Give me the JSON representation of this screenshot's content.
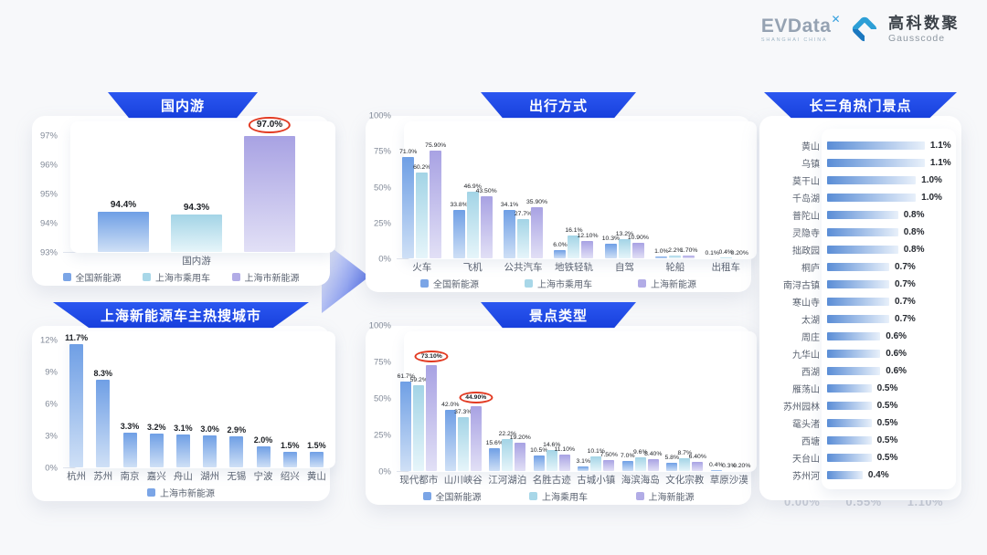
{
  "logo": {
    "evdata": "EVData",
    "evdata_mark": "✕",
    "evdata_sub": "SHANGHAI CHINA",
    "brand_cn": "高科数聚",
    "brand_en": "Gausscode"
  },
  "colors": {
    "ribbon_blue": "#1d49e6",
    "series_national_blue": "#7ba5e6",
    "series_passenger_cyan": "#a8d7e8",
    "series_shanghai_nev_purple": "#b2ace6",
    "highlight_circle_red": "#e23a22",
    "hbar_blue": "#5a8dd6"
  },
  "footer_axis_ticks": [
    "0.00%",
    "0.55%",
    "1.10%"
  ],
  "chart_data": [
    {
      "type": "bar",
      "title": "国内游",
      "y_ticks": [
        "97%",
        "96%",
        "95%",
        "94%",
        "93%"
      ],
      "y_min": 93,
      "y_max": 97.7,
      "grid": false,
      "categories": [
        "国内游"
      ],
      "legend": [
        "全国新能源",
        "上海市乘用车",
        "上海市新能源"
      ],
      "series": [
        {
          "name": "全国新能源",
          "values": [
            94.4
          ],
          "labels": [
            "94.4%"
          ]
        },
        {
          "name": "上海市乘用车",
          "values": [
            94.3
          ],
          "labels": [
            "94.3%"
          ]
        },
        {
          "name": "上海市新能源",
          "values": [
            97.0
          ],
          "labels": [
            "97.0%"
          ],
          "circled": [
            0
          ]
        }
      ]
    },
    {
      "type": "bar",
      "title": "上海新能源车主热搜城市",
      "y_ticks": [
        "12%",
        "9%",
        "6%",
        "3%",
        "0%"
      ],
      "y_min": 0,
      "y_max": 13.4,
      "grid": false,
      "categories": [
        "杭州",
        "苏州",
        "南京",
        "嘉兴",
        "舟山",
        "湖州",
        "无锡",
        "宁波",
        "绍兴",
        "黄山"
      ],
      "legend": [
        "上海市新能源"
      ],
      "series": [
        {
          "name": "上海市新能源",
          "values": [
            11.7,
            8.3,
            3.3,
            3.2,
            3.1,
            3.0,
            2.9,
            2.0,
            1.5,
            1.5
          ],
          "labels": [
            "11.7%",
            "8.3%",
            "3.3%",
            "3.2%",
            "3.1%",
            "3.0%",
            "2.9%",
            "2.0%",
            "1.5%",
            "1.5%"
          ]
        }
      ]
    },
    {
      "type": "bar",
      "title": "出行方式",
      "y_ticks": [
        "100%",
        "75%",
        "50%",
        "25%",
        "0%"
      ],
      "y_min": 0,
      "y_max": 100,
      "grid": false,
      "categories": [
        "火车",
        "飞机",
        "公共汽车",
        "地铁轻轨",
        "自驾",
        "轮船",
        "出租车"
      ],
      "legend": [
        "全国新能源",
        "上海市乘用车",
        "上海新能源"
      ],
      "series": [
        {
          "name": "全国新能源",
          "values": [
            71.0,
            33.8,
            34.1,
            6.0,
            10.3,
            1.0,
            0.1
          ],
          "labels": [
            "71.0%",
            "33.8%",
            "34.1%",
            "6.0%",
            "10.3%",
            "1.0%",
            "0.1%"
          ]
        },
        {
          "name": "上海市乘用车",
          "values": [
            60.2,
            46.9,
            27.7,
            16.1,
            13.2,
            2.2,
            0.4
          ],
          "labels": [
            "60.2%",
            "46.9%",
            "27.7%",
            "16.1%",
            "13.2%",
            "2.2%",
            "0.4%"
          ]
        },
        {
          "name": "上海新能源",
          "values": [
            75.9,
            43.5,
            35.9,
            12.1,
            10.9,
            1.7,
            0.2
          ],
          "labels": [
            "75.90%",
            "43.50%",
            "35.90%",
            "12.10%",
            "10.90%",
            "1.70%",
            "0.20%"
          ]
        }
      ]
    },
    {
      "type": "bar",
      "title": "景点类型",
      "y_ticks": [
        "100%",
        "75%",
        "50%",
        "25%",
        "0%"
      ],
      "y_min": 0,
      "y_max": 100,
      "grid": false,
      "categories": [
        "现代都市",
        "山川峡谷",
        "江河湖泊",
        "名胜古迹",
        "古城小镇",
        "海滨海岛",
        "文化宗教",
        "草原沙漠"
      ],
      "legend": [
        "全国新能源",
        "上海乘用车",
        "上海新能源"
      ],
      "series": [
        {
          "name": "全国新能源",
          "values": [
            61.7,
            42.0,
            15.6,
            10.5,
            3.1,
            7.0,
            5.8,
            0.4
          ],
          "labels": [
            "61.7%",
            "42.0%",
            "15.6%",
            "10.5%",
            "3.1%",
            "7.0%",
            "5.8%",
            "0.4%"
          ]
        },
        {
          "name": "上海乘用车",
          "values": [
            59.2,
            37.3,
            22.2,
            14.6,
            10.1,
            9.6,
            8.7,
            0.3
          ],
          "labels": [
            "59.2%",
            "37.3%",
            "22.2%",
            "14.6%",
            "10.1%",
            "9.6%",
            "8.7%",
            "0.3%"
          ]
        },
        {
          "name": "上海新能源",
          "values": [
            73.1,
            44.9,
            19.2,
            11.1,
            7.5,
            8.4,
            6.4,
            0.2
          ],
          "labels": [
            "73.10%",
            "44.90%",
            "19.20%",
            "11.10%",
            "7.50%",
            "8.40%",
            "6.40%",
            "0.20%"
          ],
          "circled": [
            0,
            1
          ]
        }
      ]
    },
    {
      "type": "bar",
      "orientation": "horizontal",
      "title": "长三角热门景点",
      "x_max": 1.1,
      "items": [
        {
          "label": "黄山",
          "value": 1.1,
          "text": "1.1%"
        },
        {
          "label": "乌镇",
          "value": 1.1,
          "text": "1.1%"
        },
        {
          "label": "莫干山",
          "value": 1.0,
          "text": "1.0%"
        },
        {
          "label": "千岛湖",
          "value": 1.0,
          "text": "1.0%"
        },
        {
          "label": "普陀山",
          "value": 0.8,
          "text": "0.8%"
        },
        {
          "label": "灵隐寺",
          "value": 0.8,
          "text": "0.8%"
        },
        {
          "label": "拙政园",
          "value": 0.8,
          "text": "0.8%"
        },
        {
          "label": "桐庐",
          "value": 0.7,
          "text": "0.7%"
        },
        {
          "label": "南浔古镇",
          "value": 0.7,
          "text": "0.7%"
        },
        {
          "label": "寒山寺",
          "value": 0.7,
          "text": "0.7%"
        },
        {
          "label": "太湖",
          "value": 0.7,
          "text": "0.7%"
        },
        {
          "label": "周庄",
          "value": 0.6,
          "text": "0.6%"
        },
        {
          "label": "九华山",
          "value": 0.6,
          "text": "0.6%"
        },
        {
          "label": "西湖",
          "value": 0.6,
          "text": "0.6%"
        },
        {
          "label": "雁荡山",
          "value": 0.5,
          "text": "0.5%"
        },
        {
          "label": "苏州园林",
          "value": 0.5,
          "text": "0.5%"
        },
        {
          "label": "鼋头渚",
          "value": 0.5,
          "text": "0.5%"
        },
        {
          "label": "西塘",
          "value": 0.5,
          "text": "0.5%"
        },
        {
          "label": "天台山",
          "value": 0.5,
          "text": "0.5%"
        },
        {
          "label": "苏州河",
          "value": 0.4,
          "text": "0.4%"
        }
      ]
    }
  ]
}
